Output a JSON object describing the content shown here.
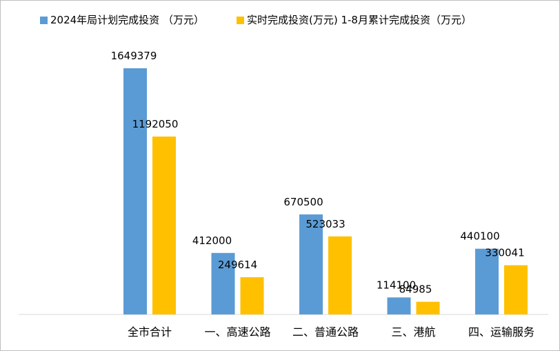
{
  "chart_data": {
    "type": "bar",
    "categories": [
      "全市合计",
      "一、高速公路",
      "二、普通公路",
      "三、港航",
      "四、运输服务"
    ],
    "series": [
      {
        "name": "2024年局计划完成投资 （万元）",
        "color": "#5b9bd5",
        "values": [
          1649379,
          412000,
          670500,
          114100,
          440100
        ]
      },
      {
        "name": "实时完成投资(万元) 1-8月累计完成投资（万元）",
        "color": "#ffc000",
        "values": [
          1192050,
          249614,
          523033,
          84985,
          330041
        ]
      }
    ],
    "legend_position": "top",
    "grid": false,
    "ylim": [
      0,
      1649379
    ]
  }
}
